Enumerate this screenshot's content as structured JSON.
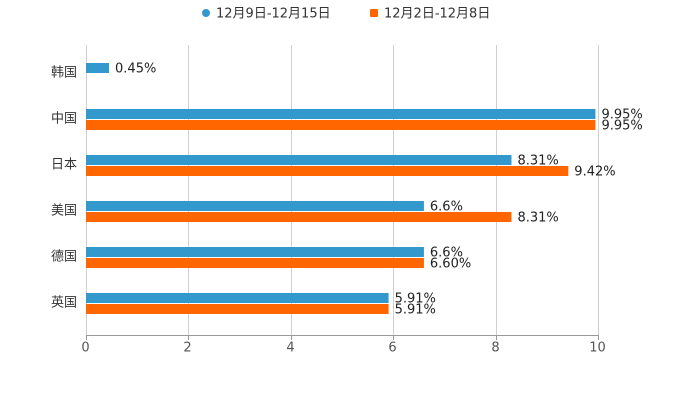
{
  "chart_data": {
    "type": "bar",
    "orientation": "horizontal",
    "categories": [
      "韩国",
      "中国",
      "日本",
      "美国",
      "德国",
      "英国"
    ],
    "series": [
      {
        "name": "12月9日-12月15日",
        "color": "#3399cc",
        "values": [
          0.45,
          9.95,
          8.31,
          6.6,
          6.6,
          5.91
        ],
        "labels": [
          "0.45%",
          "9.95%",
          "8.31%",
          "6.6%",
          "6.6%",
          "5.91%"
        ]
      },
      {
        "name": "12月2日-12月8日",
        "color": "#ff6600",
        "values": [
          null,
          9.95,
          9.42,
          8.31,
          6.6,
          5.91
        ],
        "labels": [
          null,
          "9.95%",
          "9.42%",
          "8.31%",
          "6.60%",
          "5.91%"
        ]
      }
    ],
    "xlim": [
      0,
      10
    ],
    "xticks": [
      0,
      2,
      4,
      6,
      8,
      10
    ],
    "xtick_labels": [
      "0",
      "2",
      "4",
      "6",
      "8",
      "10"
    ],
    "grid": true,
    "legend_position": "top-center",
    "title": "",
    "xlabel": "",
    "ylabel": ""
  }
}
